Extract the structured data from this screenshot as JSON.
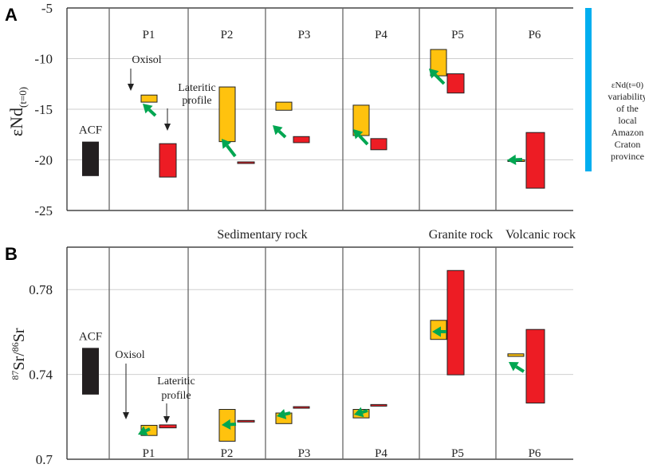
{
  "chart_data": [
    {
      "panel_label": "A",
      "type": "floating-bar",
      "ylabel": "εNd",
      "ylabel_sub": "(t=0)",
      "ylim": [
        -25,
        -5
      ],
      "yticks": [
        "-5",
        "-10",
        "-15",
        "-20",
        "-25"
      ],
      "ytick_values": [
        -5,
        -10,
        -15,
        -20,
        -25
      ],
      "grid": true,
      "profiles": [
        "P1",
        "P2",
        "P3",
        "P4",
        "P5",
        "P6"
      ],
      "acf": {
        "label": "ACF",
        "low": -21.6,
        "high": -18.2,
        "color": "#231f20"
      },
      "series": [
        {
          "name": "Oxisol",
          "color": "#ffc20e",
          "ranges": [
            [
              -14.3,
              -13.6
            ],
            [
              -18.2,
              -12.8
            ],
            [
              -15.1,
              -14.3
            ],
            [
              -17.6,
              -14.6
            ],
            [
              -11.7,
              -9.1
            ],
            [
              -20.1,
              -20.0
            ]
          ]
        },
        {
          "name": "Lateritic profile",
          "color": "#ed1c24",
          "ranges": [
            [
              -21.7,
              -18.4
            ],
            [
              -20.35,
              -20.2
            ],
            [
              -18.3,
              -17.7
            ],
            [
              -19.0,
              -17.9
            ],
            [
              -13.4,
              -11.5
            ],
            [
              -22.8,
              -17.3
            ]
          ]
        }
      ],
      "arrow_color": "#00a651",
      "annotations": {
        "oxisol": "Oxisol",
        "lateritic_line1": "Lateritic",
        "lateritic_line2": "profile"
      },
      "side_bar": {
        "color": "#00aeef",
        "low": -21.2,
        "high": -5,
        "label_lines": [
          "εNd(t=0)",
          "variability",
          "of  the",
          "local",
          "Amazon",
          "Craton",
          "province"
        ]
      },
      "rock_types": [
        "Sedimentary rock",
        "Granite rock",
        "Volcanic rock"
      ]
    },
    {
      "panel_label": "B",
      "type": "floating-bar",
      "ylabel_pre": "87",
      "ylabel_mid": "Sr/",
      "ylabel_pre2": "86",
      "ylabel_post": "Sr",
      "ylim": [
        0.7,
        0.8
      ],
      "yticks": [
        "0.78",
        "0.74",
        "0.7"
      ],
      "ytick_values": [
        0.78,
        0.74,
        0.7
      ],
      "grid": true,
      "profiles": [
        "P1",
        "P2",
        "P3",
        "P4",
        "P5",
        "P6"
      ],
      "acf": {
        "label": "ACF",
        "low": 0.7305,
        "high": 0.7525,
        "color": "#231f20"
      },
      "series": [
        {
          "name": "Oxisol",
          "color": "#ffc20e",
          "ranges": [
            [
              0.7112,
              0.716
            ],
            [
              0.7085,
              0.7235
            ],
            [
              0.7168,
              0.7218
            ],
            [
              0.7195,
              0.7235
            ],
            [
              0.7565,
              0.7655
            ],
            [
              0.7485,
              0.7497
            ]
          ]
        },
        {
          "name": "Lateritic profile",
          "color": "#ed1c24",
          "ranges": [
            [
              0.7148,
              0.7162
            ],
            [
              0.7178,
              0.7183
            ],
            [
              0.7243,
              0.7248
            ],
            [
              0.7251,
              0.7258
            ],
            [
              0.7398,
              0.789
            ],
            [
              0.7265,
              0.7612
            ]
          ]
        }
      ],
      "arrow_color": "#00a651",
      "annotations": {
        "oxisol": "Oxisol",
        "lateritic_line1": "Lateritic",
        "lateritic_line2": "profile"
      }
    }
  ]
}
